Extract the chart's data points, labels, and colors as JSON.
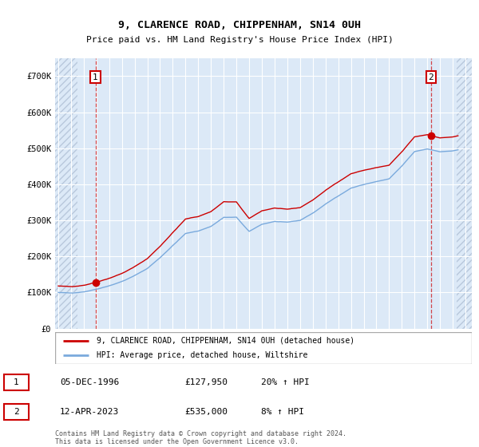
{
  "title": "9, CLARENCE ROAD, CHIPPENHAM, SN14 0UH",
  "subtitle": "Price paid vs. HM Land Registry's House Price Index (HPI)",
  "ylim": [
    0,
    750000
  ],
  "xlim_start": 1993.75,
  "xlim_end": 2026.5,
  "ytick_labels": [
    "£0",
    "£100K",
    "£200K",
    "£300K",
    "£400K",
    "£500K",
    "£600K",
    "£700K"
  ],
  "ytick_values": [
    0,
    100000,
    200000,
    300000,
    400000,
    500000,
    600000,
    700000
  ],
  "plot_bg_color": "#dce9f7",
  "hatch_color": "#b8c8dc",
  "grid_color": "#ffffff",
  "line1_color": "#cc0000",
  "line2_color": "#7aaadd",
  "marker_color": "#cc0000",
  "vline_color": "#cc0000",
  "sale1_x": 1996.92,
  "sale1_y": 127950,
  "sale2_x": 2023.28,
  "sale2_y": 535000,
  "legend_line1": "9, CLARENCE ROAD, CHIPPENHAM, SN14 0UH (detached house)",
  "legend_line2": "HPI: Average price, detached house, Wiltshire",
  "table_row1": [
    "1",
    "05-DEC-1996",
    "£127,950",
    "20% ↑ HPI"
  ],
  "table_row2": [
    "2",
    "12-APR-2023",
    "£535,000",
    "8% ↑ HPI"
  ],
  "footer": "Contains HM Land Registry data © Crown copyright and database right 2024.\nThis data is licensed under the Open Government Licence v3.0.",
  "hatch_left_end": 1995.5,
  "hatch_right_start": 2025.3
}
